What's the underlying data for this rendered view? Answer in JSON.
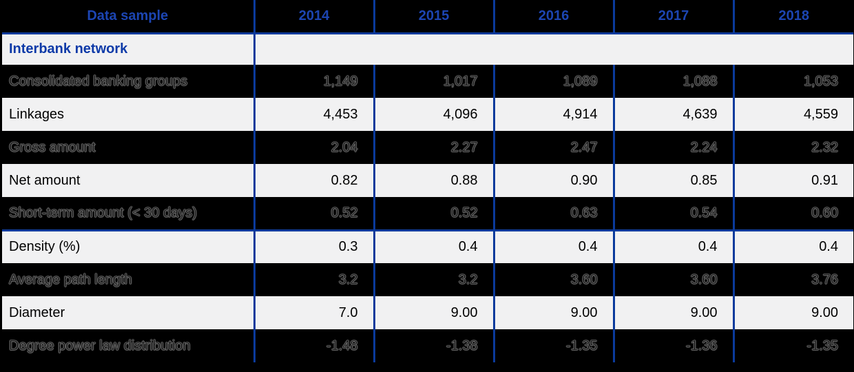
{
  "colors": {
    "page_bg": "#000000",
    "border_blue": "#0a3a9c",
    "header_text": "#1c45b2",
    "section_text": "#0d3aa8",
    "row_fill": "#f1f1f2"
  },
  "table": {
    "header": {
      "data_sample_label": "Data sample",
      "years": [
        "2014",
        "2015",
        "2016",
        "2017",
        "2018"
      ]
    },
    "section_title": "Interbank network",
    "rows": [
      {
        "label": "Consolidated banking groups",
        "values": [
          "1,149",
          "1,017",
          "1,089",
          "1,088",
          "1,053"
        ]
      },
      {
        "label": "Linkages",
        "values": [
          "4,453",
          "4,096",
          "4,914",
          "4,639",
          "4,559"
        ]
      },
      {
        "label": "Gross amount",
        "values": [
          "2.04",
          "2.27",
          "2.47",
          "2.24",
          "2.32"
        ]
      },
      {
        "label": "Net amount",
        "values": [
          "0.82",
          "0.88",
          "0.90",
          "0.85",
          "0.91"
        ]
      },
      {
        "label": "Short-term amount (< 30 days)",
        "values": [
          "0.52",
          "0.52",
          "0.63",
          "0.54",
          "0.60"
        ]
      },
      {
        "label": "Density (%)",
        "values": [
          "0.3",
          "0.4",
          "0.4",
          "0.4",
          "0.4"
        ]
      },
      {
        "label": "Average path length",
        "values": [
          "3.2",
          "3.2",
          "3.60",
          "3.60",
          "3.76"
        ]
      },
      {
        "label": "Diameter",
        "values": [
          "7.0",
          "9.00",
          "9.00",
          "9.00",
          "9.00"
        ]
      },
      {
        "label": "Degree power law distribution",
        "values": [
          "-1.48",
          "-1.38",
          "-1.35",
          "-1.36",
          "-1.35"
        ]
      }
    ]
  },
  "chart_data": {
    "type": "table",
    "title": "Data sample",
    "columns": [
      "Data sample",
      "2014",
      "2015",
      "2016",
      "2017",
      "2018"
    ],
    "sections": [
      {
        "name": "Interbank network",
        "rows": [
          {
            "label": "Consolidated banking groups",
            "values": [
              1149,
              1017,
              1089,
              1088,
              1053
            ]
          },
          {
            "label": "Linkages",
            "values": [
              4453,
              4096,
              4914,
              4639,
              4559
            ]
          },
          {
            "label": "Gross amount",
            "values": [
              2.04,
              2.27,
              2.47,
              2.24,
              2.32
            ]
          },
          {
            "label": "Net amount",
            "values": [
              0.82,
              0.88,
              0.9,
              0.85,
              0.91
            ]
          },
          {
            "label": "Short-term amount (< 30 days)",
            "values": [
              0.52,
              0.52,
              0.63,
              0.54,
              0.6
            ]
          },
          {
            "label": "Density (%)",
            "values": [
              0.3,
              0.4,
              0.4,
              0.4,
              0.4
            ]
          },
          {
            "label": "Average path length",
            "values": [
              3.2,
              3.2,
              3.6,
              3.6,
              3.76
            ]
          },
          {
            "label": "Diameter",
            "values": [
              7.0,
              9.0,
              9.0,
              9.0,
              9.0
            ]
          },
          {
            "label": "Degree power law distribution",
            "values": [
              -1.48,
              -1.38,
              -1.35,
              -1.36,
              -1.35
            ]
          }
        ]
      }
    ],
    "layout_hints": {
      "ghost_rows_alternating": true,
      "header_rule": true,
      "rule_above_row": "Density (%)"
    }
  }
}
